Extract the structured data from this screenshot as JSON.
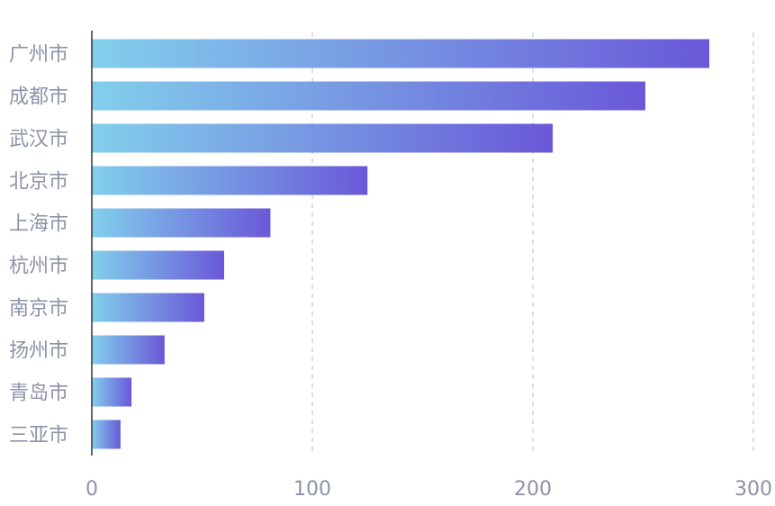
{
  "chart_data": {
    "type": "bar",
    "orientation": "horizontal",
    "categories": [
      "广州市",
      "成都市",
      "武汉市",
      "北京市",
      "上海市",
      "杭州市",
      "南京市",
      "扬州市",
      "青岛市",
      "三亚市"
    ],
    "values": [
      280,
      251,
      209,
      125,
      81,
      60,
      51,
      33,
      18,
      13
    ],
    "xlim": [
      0,
      300
    ],
    "x_ticks": [
      "0",
      "100",
      "200",
      "300"
    ],
    "title": "",
    "xlabel": "",
    "ylabel": "",
    "grid": "vertical dashed",
    "legend": "none"
  },
  "colors": {
    "bar_gradient_start": "#82cfec",
    "bar_gradient_end": "#6a58d8",
    "label_color": "#8d93a8",
    "grid_color": "#d2d2d2",
    "axis_color": "#333333"
  }
}
